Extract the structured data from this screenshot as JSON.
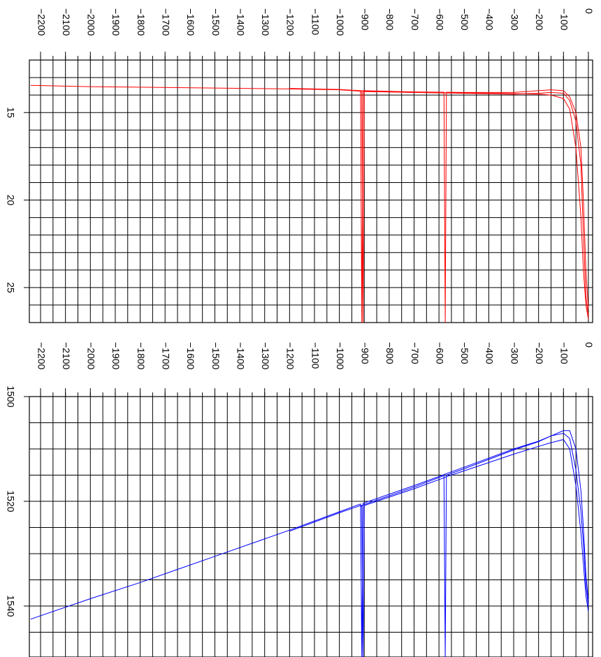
{
  "chart_data": [
    {
      "type": "line",
      "x": [
        0,
        -10,
        -20,
        -30,
        -50,
        -75,
        -100,
        -150,
        -200,
        -300,
        -500,
        -570,
        -575,
        -580,
        -700,
        -900,
        -905,
        -910,
        -915,
        -1000,
        -1200,
        -1500,
        -1800,
        -2000,
        -2240
      ],
      "xlim": [
        -2245,
        17
      ],
      "ylim": [
        12,
        27
      ],
      "xticks": [
        {
          "value": -2200,
          "label": "−2200"
        },
        {
          "value": -2100,
          "label": "−2100"
        },
        {
          "value": -2000,
          "label": "−2000"
        },
        {
          "value": -1900,
          "label": "−1900"
        },
        {
          "value": -1800,
          "label": "−1800"
        },
        {
          "value": -1700,
          "label": "−1700"
        },
        {
          "value": -1600,
          "label": "−1600"
        },
        {
          "value": -1500,
          "label": "−1500"
        },
        {
          "value": -1400,
          "label": "−1400"
        },
        {
          "value": -1300,
          "label": "−1300"
        },
        {
          "value": -1200,
          "label": "−1200"
        },
        {
          "value": -1100,
          "label": "−1100"
        },
        {
          "value": -1000,
          "label": "−1000"
        },
        {
          "value": -900,
          "label": "−900"
        },
        {
          "value": -800,
          "label": "−800"
        },
        {
          "value": -700,
          "label": "−700"
        },
        {
          "value": -600,
          "label": "−600"
        },
        {
          "value": -500,
          "label": "−500"
        },
        {
          "value": -400,
          "label": "−400"
        },
        {
          "value": -300,
          "label": "−300"
        },
        {
          "value": -200,
          "label": "−200"
        },
        {
          "value": -100,
          "label": "−100"
        },
        0
      ],
      "yticks": [
        15,
        20,
        25
      ],
      "xgrid": [
        -2200,
        -2150,
        -2100,
        -2050,
        -2000,
        -1950,
        -1900,
        -1850,
        -1800,
        -1750,
        -1700,
        -1650,
        -1600,
        -1550,
        -1500,
        -1450,
        -1400,
        -1350,
        -1300,
        -1250,
        -1200,
        -1150,
        -1100,
        -1050,
        -1000,
        -950,
        -900,
        -850,
        -800,
        -750,
        -700,
        -650,
        -600,
        -550,
        -500,
        -450,
        -400,
        -350,
        -300,
        -250,
        -200,
        -150,
        -100,
        -50,
        0
      ],
      "ygrid": [
        13,
        14,
        15,
        16,
        17,
        18,
        19,
        20,
        21,
        22,
        23,
        24,
        25,
        26
      ],
      "series": [
        {
          "color": "#ff0000",
          "values": [
            26.6,
            25.5,
            22,
            18,
            15.5,
            14.3,
            13.9,
            13.85,
            13.9,
            13.95,
            13.9,
            13.88,
            13.88,
            13.88,
            13.85,
            13.78,
            13.78,
            27,
            13.78,
            13.7,
            13.65,
            13.6,
            13.55,
            13.52,
            13.45
          ]
        },
        {
          "color": "#ff0000",
          "values": [
            26.2,
            24,
            20,
            17,
            15,
            14.1,
            13.75,
            13.7,
            13.75,
            13.85,
            13.85,
            13.84,
            27,
            13.84,
            13.82,
            13.75,
            13.75,
            13.75,
            13.75,
            13.68,
            13.62,
            null,
            null,
            null,
            null
          ]
        },
        {
          "color": "#ff0000",
          "values": [
            26.8,
            26,
            24,
            21,
            17,
            14.8,
            14.2,
            14,
            13.95,
            13.92,
            13.88,
            13.87,
            13.87,
            13.87,
            13.85,
            13.8,
            27,
            13.8,
            13.8,
            null,
            null,
            null,
            null,
            null,
            null
          ]
        }
      ]
    },
    {
      "type": "line",
      "x": [
        0,
        -10,
        -20,
        -30,
        -50,
        -75,
        -100,
        -150,
        -200,
        -300,
        -500,
        -570,
        -575,
        -580,
        -700,
        -900,
        -905,
        -910,
        -915,
        -1000,
        -1200,
        -1500,
        -1800,
        -2000,
        -2240
      ],
      "xlim": [
        -2245,
        17
      ],
      "ylim": [
        1500,
        1550
      ],
      "xticks": [
        {
          "value": -2200,
          "label": "−2200"
        },
        {
          "value": -2100,
          "label": "−2100"
        },
        {
          "value": -2000,
          "label": "−2000"
        },
        {
          "value": -1900,
          "label": "−1900"
        },
        {
          "value": -1800,
          "label": "−1800"
        },
        {
          "value": -1700,
          "label": "−1700"
        },
        {
          "value": -1600,
          "label": "−1600"
        },
        {
          "value": -1500,
          "label": "−1500"
        },
        {
          "value": -1400,
          "label": "−1400"
        },
        {
          "value": -1300,
          "label": "−1300"
        },
        {
          "value": -1200,
          "label": "−1200"
        },
        {
          "value": -1100,
          "label": "−1100"
        },
        {
          "value": -1000,
          "label": "−1000"
        },
        {
          "value": -900,
          "label": "−900"
        },
        {
          "value": -800,
          "label": "−800"
        },
        {
          "value": -700,
          "label": "−700"
        },
        {
          "value": -600,
          "label": "−600"
        },
        {
          "value": -500,
          "label": "−500"
        },
        {
          "value": -400,
          "label": "−400"
        },
        {
          "value": -300,
          "label": "−300"
        },
        {
          "value": -200,
          "label": "−200"
        },
        {
          "value": -100,
          "label": "−100"
        },
        0
      ],
      "yticks": [
        1500,
        1520,
        1540
      ],
      "xgrid": [
        -2200,
        -2150,
        -2100,
        -2050,
        -2000,
        -1950,
        -1900,
        -1850,
        -1800,
        -1750,
        -1700,
        -1650,
        -1600,
        -1550,
        -1500,
        -1450,
        -1400,
        -1350,
        -1300,
        -1250,
        -1200,
        -1150,
        -1100,
        -1050,
        -1000,
        -950,
        -900,
        -850,
        -800,
        -750,
        -700,
        -650,
        -600,
        -550,
        -500,
        -450,
        -400,
        -350,
        -300,
        -250,
        -200,
        -150,
        -100,
        -50,
        0
      ],
      "ygrid": [
        1505,
        1510,
        1515,
        1520,
        1525,
        1530,
        1535,
        1540,
        1545
      ],
      "series": [
        {
          "color": "#0000ff",
          "values": [
            1540,
            1536,
            1528,
            1522,
            1514,
            1508,
            1507,
            1507.5,
            1508.5,
            1510,
            1513.5,
            1514.7,
            1514.8,
            1514.9,
            1517,
            1520.3,
            1520.4,
            1550,
            1520.5,
            1522,
            1525.5,
            1530.5,
            1535.5,
            1538.6,
            1542.5
          ]
        },
        {
          "color": "#0000ff",
          "values": [
            1539,
            1534,
            1525,
            1518,
            1510,
            1506.5,
            1506.5,
            1507.5,
            1508.6,
            1510.2,
            1513.8,
            1515,
            1550,
            1515.1,
            1517.3,
            1520.6,
            1520.7,
            1520.8,
            1520.8,
            1522.2,
            1525.7,
            null,
            null,
            null,
            null
          ]
        },
        {
          "color": "#0000ff",
          "values": [
            1541,
            1538,
            1532,
            1526,
            1517,
            1510,
            1508.2,
            1508.8,
            1509.5,
            1511,
            1514.2,
            1515.3,
            1515.4,
            1515.5,
            1517.6,
            1520.8,
            1550,
            1520.9,
            1521,
            null,
            null,
            null,
            null,
            null,
            null
          ]
        }
      ]
    }
  ]
}
